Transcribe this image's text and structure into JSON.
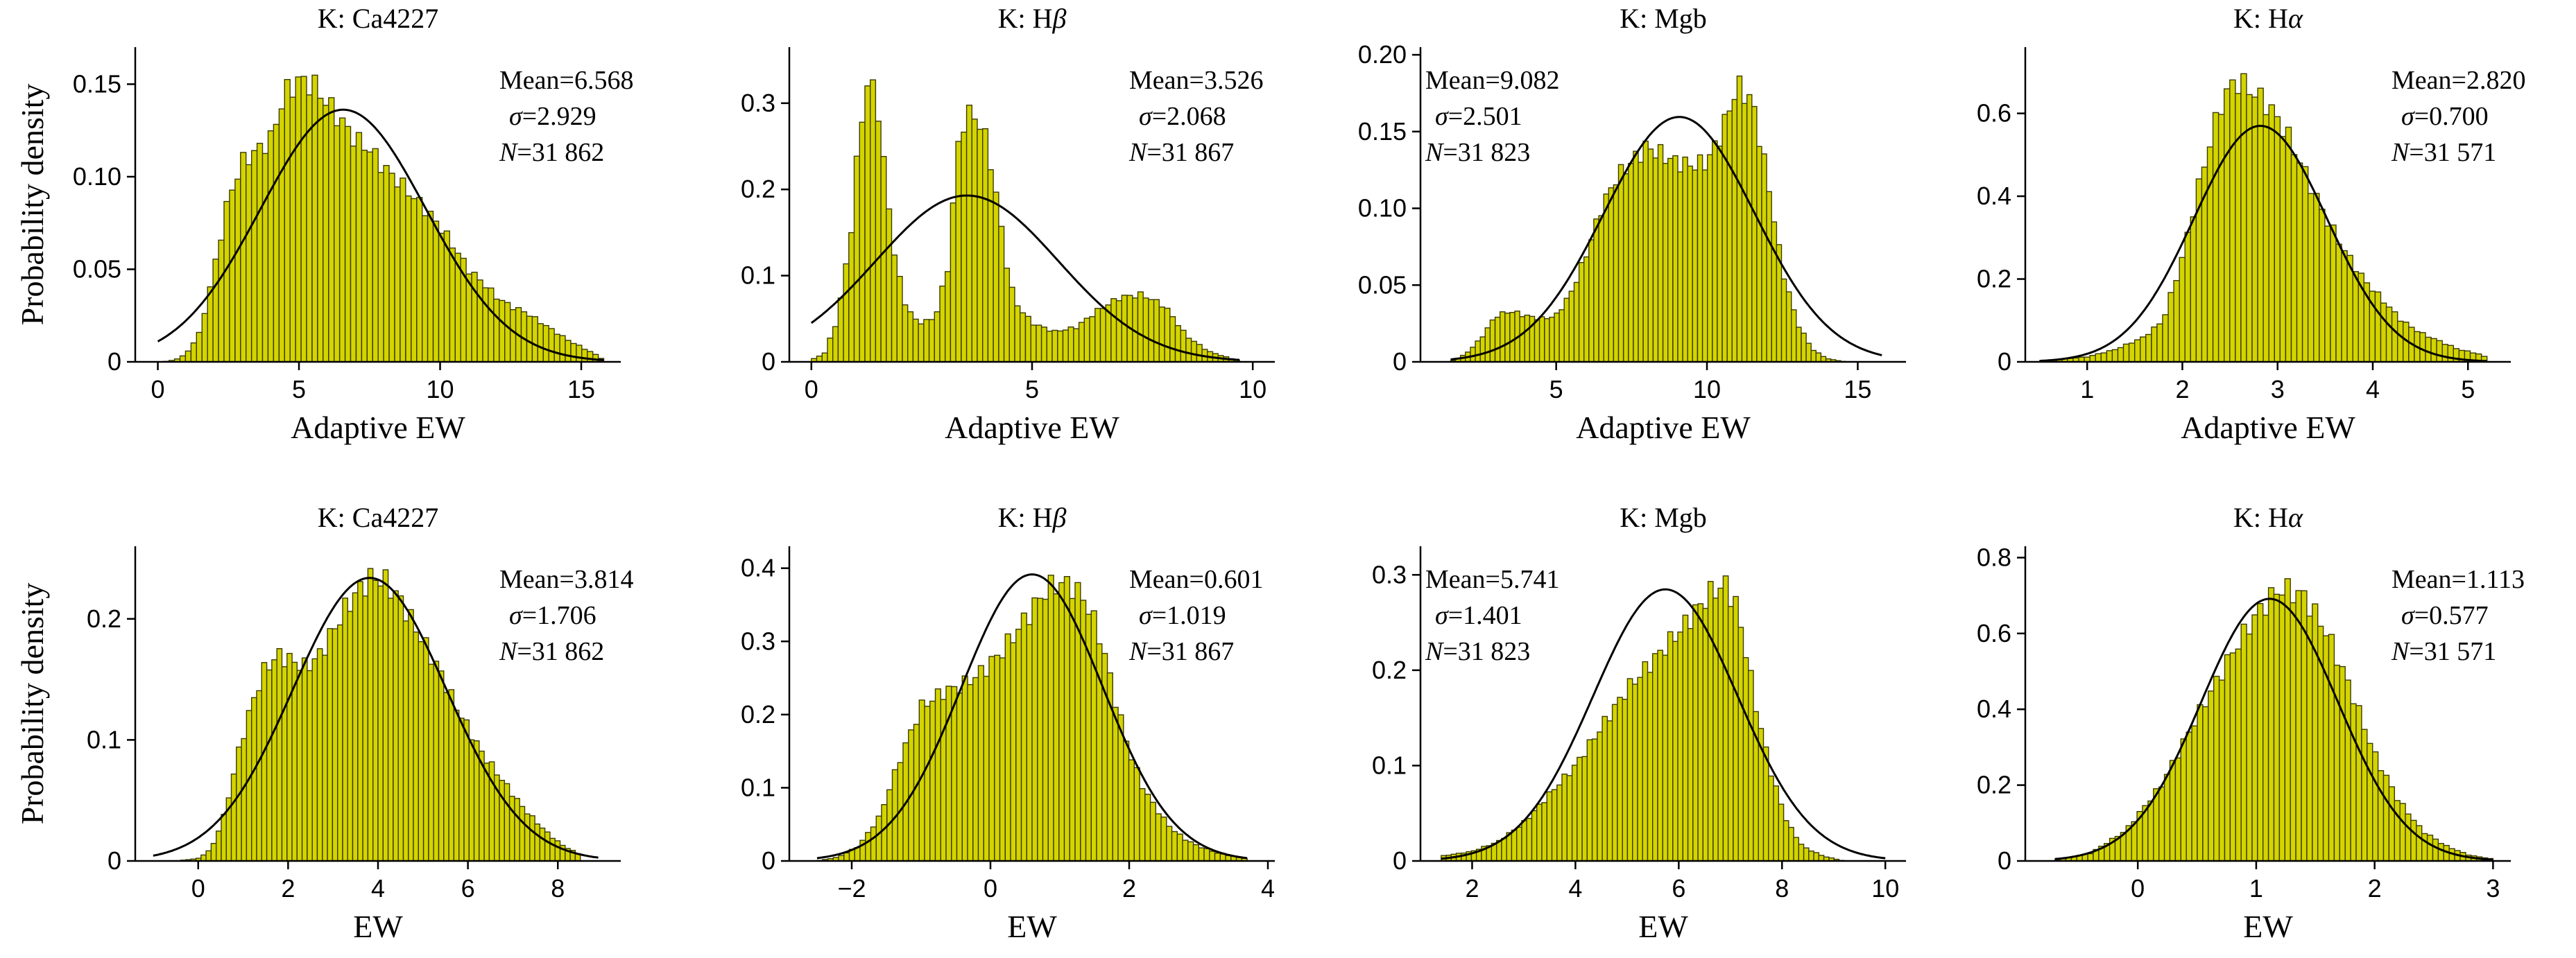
{
  "figure": {
    "shared_ylabel": "Probability density",
    "bar_color": "#d4d400",
    "bar_edge_color": "#3a3a00",
    "fit_color": "#000000"
  },
  "chart_data": [
    {
      "type": "histogram",
      "title_prefix": "K: ",
      "title_main": "Ca4227",
      "title_italic": "",
      "xlabel": "Adaptive EW",
      "xlim": [
        -0.8,
        16.4
      ],
      "ylim": [
        0,
        0.17
      ],
      "xticks": [
        0,
        5,
        10,
        15
      ],
      "yticks": [
        0,
        0.05,
        0.1,
        0.15
      ],
      "yticklabels": [
        "0",
        "0.05",
        "0.10",
        "0.15"
      ],
      "fit_range": [
        0,
        15.8
      ],
      "hist_range": [
        0.2,
        15.8
      ],
      "anchors": [
        [
          0.2,
          0
        ],
        [
          0.6,
          0.001
        ],
        [
          1,
          0.004
        ],
        [
          1.5,
          0.016
        ],
        [
          2,
          0.05
        ],
        [
          2.5,
          0.088
        ],
        [
          3,
          0.108
        ],
        [
          3.5,
          0.114
        ],
        [
          4,
          0.12
        ],
        [
          4.5,
          0.145
        ],
        [
          5,
          0.152
        ],
        [
          5.5,
          0.15
        ],
        [
          6,
          0.14
        ],
        [
          6.5,
          0.13
        ],
        [
          7,
          0.12
        ],
        [
          7.5,
          0.115
        ],
        [
          8,
          0.105
        ],
        [
          8.5,
          0.098
        ],
        [
          9,
          0.09
        ],
        [
          9.5,
          0.082
        ],
        [
          10,
          0.073
        ],
        [
          10.5,
          0.062
        ],
        [
          11,
          0.05
        ],
        [
          11.5,
          0.043
        ],
        [
          12,
          0.035
        ],
        [
          12.5,
          0.03
        ],
        [
          13,
          0.027
        ],
        [
          13.5,
          0.022
        ],
        [
          14,
          0.017
        ],
        [
          14.5,
          0.012
        ],
        [
          15,
          0.008
        ],
        [
          15.5,
          0.004
        ],
        [
          15.8,
          0.001
        ]
      ],
      "stats": {
        "mean": "Mean=6.568",
        "sigma": "2.929",
        "n": "31 862"
      },
      "mean_value": 6.568,
      "sigma_value": 2.929
    },
    {
      "type": "histogram",
      "title_prefix": "K: ",
      "title_main": "H",
      "title_italic": "β",
      "xlabel": "Adaptive EW",
      "xlim": [
        -0.5,
        10.5
      ],
      "ylim": [
        0,
        0.365
      ],
      "xticks": [
        0,
        5,
        10
      ],
      "yticks": [
        0,
        0.1,
        0.2,
        0.3
      ],
      "yticklabels": [
        "0",
        "0.1",
        "0.2",
        "0.3"
      ],
      "fit_range": [
        0,
        9.7
      ],
      "hist_range": [
        0,
        9.7
      ],
      "anchors": [
        [
          0,
          0.002
        ],
        [
          0.3,
          0.01
        ],
        [
          0.6,
          0.05
        ],
        [
          0.9,
          0.15
        ],
        [
          1.1,
          0.27
        ],
        [
          1.3,
          0.33
        ],
        [
          1.5,
          0.3
        ],
        [
          1.7,
          0.2
        ],
        [
          1.9,
          0.12
        ],
        [
          2.1,
          0.07
        ],
        [
          2.4,
          0.045
        ],
        [
          2.8,
          0.05
        ],
        [
          3.1,
          0.11
        ],
        [
          3.3,
          0.24
        ],
        [
          3.5,
          0.29
        ],
        [
          3.8,
          0.28
        ],
        [
          4.0,
          0.25
        ],
        [
          4.2,
          0.19
        ],
        [
          4.4,
          0.12
        ],
        [
          4.6,
          0.07
        ],
        [
          5,
          0.045
        ],
        [
          5.5,
          0.035
        ],
        [
          6,
          0.04
        ],
        [
          6.5,
          0.06
        ],
        [
          7,
          0.075
        ],
        [
          7.5,
          0.078
        ],
        [
          8,
          0.065
        ],
        [
          8.5,
          0.03
        ],
        [
          9,
          0.012
        ],
        [
          9.5,
          0.004
        ],
        [
          9.7,
          0.001
        ]
      ],
      "stats": {
        "mean": "Mean=3.526",
        "sigma": "2.068",
        "n": "31 867"
      },
      "mean_value": 3.526,
      "sigma_value": 2.068
    },
    {
      "type": "histogram",
      "title_prefix": "K: ",
      "title_main": "Mgb",
      "title_italic": "",
      "xlabel": "Adaptive EW",
      "xlim": [
        0.5,
        16.6
      ],
      "ylim": [
        0,
        0.205
      ],
      "xticks": [
        5,
        10,
        15
      ],
      "yticks": [
        0,
        0.05,
        0.1,
        0.15,
        0.2
      ],
      "yticklabels": [
        "0",
        "0.05",
        "0.10",
        "0.15",
        "0.20"
      ],
      "fit_range": [
        1.5,
        15.8
      ],
      "hist_range": [
        1.5,
        14.6
      ],
      "anchors": [
        [
          1.5,
          0
        ],
        [
          2,
          0.005
        ],
        [
          2.5,
          0.015
        ],
        [
          3,
          0.03
        ],
        [
          3.5,
          0.033
        ],
        [
          4,
          0.03
        ],
        [
          4.5,
          0.028
        ],
        [
          5,
          0.03
        ],
        [
          5.5,
          0.045
        ],
        [
          6,
          0.07
        ],
        [
          6.5,
          0.1
        ],
        [
          7,
          0.12
        ],
        [
          7.5,
          0.13
        ],
        [
          8,
          0.14
        ],
        [
          8.5,
          0.135
        ],
        [
          9,
          0.13
        ],
        [
          9.5,
          0.128
        ],
        [
          10,
          0.13
        ],
        [
          10.5,
          0.15
        ],
        [
          11,
          0.18
        ],
        [
          11.5,
          0.17
        ],
        [
          12,
          0.12
        ],
        [
          12.5,
          0.06
        ],
        [
          13,
          0.025
        ],
        [
          13.5,
          0.008
        ],
        [
          14,
          0.002
        ],
        [
          14.6,
          0
        ]
      ],
      "stats": {
        "mean": "Mean=9.082",
        "sigma": "2.501",
        "n": "31 823"
      },
      "mean_value": 9.082,
      "sigma_value": 2.501
    },
    {
      "type": "histogram",
      "title_prefix": "K: ",
      "title_main": "H",
      "title_italic": "α",
      "xlabel": "Adaptive EW",
      "xlim": [
        0.35,
        5.45
      ],
      "ylim": [
        0,
        0.76
      ],
      "xticks": [
        1,
        2,
        3,
        4,
        5
      ],
      "yticks": [
        0,
        0.2,
        0.4,
        0.6
      ],
      "yticklabels": [
        "0",
        "0.2",
        "0.4",
        "0.6"
      ],
      "fit_range": [
        0.5,
        5.2
      ],
      "hist_range": [
        0.5,
        5.2
      ],
      "anchors": [
        [
          0.5,
          0.002
        ],
        [
          0.8,
          0.008
        ],
        [
          1,
          0.012
        ],
        [
          1.3,
          0.03
        ],
        [
          1.6,
          0.06
        ],
        [
          1.8,
          0.1
        ],
        [
          2,
          0.25
        ],
        [
          2.2,
          0.45
        ],
        [
          2.4,
          0.62
        ],
        [
          2.55,
          0.68
        ],
        [
          2.7,
          0.66
        ],
        [
          2.9,
          0.62
        ],
        [
          3.1,
          0.55
        ],
        [
          3.3,
          0.45
        ],
        [
          3.5,
          0.35
        ],
        [
          3.7,
          0.27
        ],
        [
          3.9,
          0.2
        ],
        [
          4.1,
          0.15
        ],
        [
          4.3,
          0.1
        ],
        [
          4.5,
          0.07
        ],
        [
          4.7,
          0.05
        ],
        [
          4.9,
          0.03
        ],
        [
          5.1,
          0.02
        ],
        [
          5.2,
          0.01
        ]
      ],
      "stats": {
        "mean": "Mean=2.820",
        "sigma": "0.700",
        "n": "31 571"
      },
      "mean_value": 2.82,
      "sigma_value": 0.7
    },
    {
      "type": "histogram",
      "title_prefix": "K: ",
      "title_main": "Ca4227",
      "title_italic": "",
      "xlabel": "EW",
      "xlim": [
        -1.4,
        9.4
      ],
      "ylim": [
        0,
        0.26
      ],
      "xticks": [
        0,
        2,
        4,
        6,
        8
      ],
      "yticks": [
        0,
        0.1,
        0.2
      ],
      "yticklabels": [
        "0",
        "0.1",
        "0.2"
      ],
      "fit_range": [
        -1,
        8.9
      ],
      "hist_range": [
        -0.5,
        8.5
      ],
      "anchors": [
        [
          -0.5,
          0
        ],
        [
          0,
          0.002
        ],
        [
          0.3,
          0.01
        ],
        [
          0.6,
          0.04
        ],
        [
          0.9,
          0.09
        ],
        [
          1.2,
          0.13
        ],
        [
          1.5,
          0.16
        ],
        [
          1.8,
          0.17
        ],
        [
          2.1,
          0.165
        ],
        [
          2.4,
          0.16
        ],
        [
          2.7,
          0.17
        ],
        [
          3,
          0.19
        ],
        [
          3.3,
          0.21
        ],
        [
          3.6,
          0.225
        ],
        [
          3.9,
          0.235
        ],
        [
          4.2,
          0.23
        ],
        [
          4.5,
          0.215
        ],
        [
          4.8,
          0.195
        ],
        [
          5.1,
          0.175
        ],
        [
          5.4,
          0.155
        ],
        [
          5.7,
          0.13
        ],
        [
          6,
          0.11
        ],
        [
          6.3,
          0.09
        ],
        [
          6.6,
          0.075
        ],
        [
          6.9,
          0.06
        ],
        [
          7.2,
          0.045
        ],
        [
          7.5,
          0.033
        ],
        [
          7.8,
          0.022
        ],
        [
          8.1,
          0.013
        ],
        [
          8.5,
          0.005
        ]
      ],
      "stats": {
        "mean": "Mean=3.814",
        "sigma": "1.706",
        "n": "31 862"
      },
      "mean_value": 3.814,
      "sigma_value": 1.706
    },
    {
      "type": "histogram",
      "title_prefix": "K: ",
      "title_main": "H",
      "title_italic": "β",
      "xlabel": "EW",
      "xlim": [
        -2.9,
        4.1
      ],
      "ylim": [
        0,
        0.43
      ],
      "xticks": [
        -2,
        0,
        2,
        4
      ],
      "yticks": [
        0,
        0.1,
        0.2,
        0.3,
        0.4
      ],
      "yticklabels": [
        "0",
        "0.1",
        "0.2",
        "0.3",
        "0.4"
      ],
      "fit_range": [
        -2.5,
        3.7
      ],
      "hist_range": [
        -2.5,
        3.7
      ],
      "anchors": [
        [
          -2.5,
          0
        ],
        [
          -2.2,
          0.005
        ],
        [
          -1.9,
          0.02
        ],
        [
          -1.6,
          0.06
        ],
        [
          -1.3,
          0.14
        ],
        [
          -1.0,
          0.21
        ],
        [
          -0.7,
          0.23
        ],
        [
          -0.4,
          0.24
        ],
        [
          -0.1,
          0.26
        ],
        [
          0.2,
          0.29
        ],
        [
          0.5,
          0.33
        ],
        [
          0.8,
          0.37
        ],
        [
          1.0,
          0.38
        ],
        [
          1.2,
          0.375
        ],
        [
          1.4,
          0.35
        ],
        [
          1.6,
          0.3
        ],
        [
          1.8,
          0.22
        ],
        [
          2.0,
          0.15
        ],
        [
          2.2,
          0.1
        ],
        [
          2.4,
          0.07
        ],
        [
          2.6,
          0.045
        ],
        [
          2.8,
          0.03
        ],
        [
          3.0,
          0.02
        ],
        [
          3.3,
          0.01
        ],
        [
          3.7,
          0.003
        ]
      ],
      "stats": {
        "mean": "Mean=0.601",
        "sigma": "1.019",
        "n": "31 867"
      },
      "mean_value": 0.601,
      "sigma_value": 1.019
    },
    {
      "type": "histogram",
      "title_prefix": "K: ",
      "title_main": "Mgb",
      "title_italic": "",
      "xlabel": "EW",
      "xlim": [
        1.0,
        10.4
      ],
      "ylim": [
        0,
        0.33
      ],
      "xticks": [
        2,
        4,
        6,
        8,
        10
      ],
      "yticks": [
        0,
        0.1,
        0.2,
        0.3
      ],
      "yticklabels": [
        "0",
        "0.1",
        "0.2",
        "0.3"
      ],
      "fit_range": [
        1.4,
        10
      ],
      "hist_range": [
        1.4,
        9.2
      ],
      "anchors": [
        [
          1.4,
          0.005
        ],
        [
          2,
          0.01
        ],
        [
          2.5,
          0.02
        ],
        [
          3,
          0.04
        ],
        [
          3.5,
          0.07
        ],
        [
          4,
          0.1
        ],
        [
          4.5,
          0.14
        ],
        [
          5,
          0.18
        ],
        [
          5.5,
          0.21
        ],
        [
          6,
          0.24
        ],
        [
          6.3,
          0.26
        ],
        [
          6.6,
          0.28
        ],
        [
          6.9,
          0.29
        ],
        [
          7.1,
          0.27
        ],
        [
          7.3,
          0.22
        ],
        [
          7.5,
          0.16
        ],
        [
          7.8,
          0.09
        ],
        [
          8.1,
          0.04
        ],
        [
          8.4,
          0.015
        ],
        [
          8.8,
          0.005
        ],
        [
          9.2,
          0
        ]
      ],
      "stats": {
        "mean": "Mean=5.741",
        "sigma": "1.401",
        "n": "31 823"
      },
      "mean_value": 5.741,
      "sigma_value": 1.401
    },
    {
      "type": "histogram",
      "title_prefix": "K: ",
      "title_main": "H",
      "title_italic": "α",
      "xlabel": "EW",
      "xlim": [
        -0.95,
        3.15
      ],
      "ylim": [
        0,
        0.83
      ],
      "xticks": [
        0,
        1,
        2,
        3
      ],
      "yticks": [
        0,
        0.2,
        0.4,
        0.6,
        0.8
      ],
      "yticklabels": [
        "0",
        "0.2",
        "0.4",
        "0.6",
        "0.8"
      ],
      "fit_range": [
        -0.7,
        3.0
      ],
      "hist_range": [
        -0.7,
        3.0
      ],
      "anchors": [
        [
          -0.7,
          0.002
        ],
        [
          -0.4,
          0.02
        ],
        [
          -0.1,
          0.08
        ],
        [
          0.2,
          0.2
        ],
        [
          0.5,
          0.38
        ],
        [
          0.8,
          0.55
        ],
        [
          1.0,
          0.65
        ],
        [
          1.2,
          0.72
        ],
        [
          1.4,
          0.7
        ],
        [
          1.6,
          0.6
        ],
        [
          1.8,
          0.45
        ],
        [
          2.0,
          0.28
        ],
        [
          2.2,
          0.16
        ],
        [
          2.4,
          0.08
        ],
        [
          2.6,
          0.04
        ],
        [
          2.8,
          0.015
        ],
        [
          3.0,
          0.005
        ]
      ],
      "stats": {
        "mean": "Mean=1.113",
        "sigma": "0.577",
        "n": "31 571"
      },
      "mean_value": 1.113,
      "sigma_value": 0.577
    }
  ]
}
